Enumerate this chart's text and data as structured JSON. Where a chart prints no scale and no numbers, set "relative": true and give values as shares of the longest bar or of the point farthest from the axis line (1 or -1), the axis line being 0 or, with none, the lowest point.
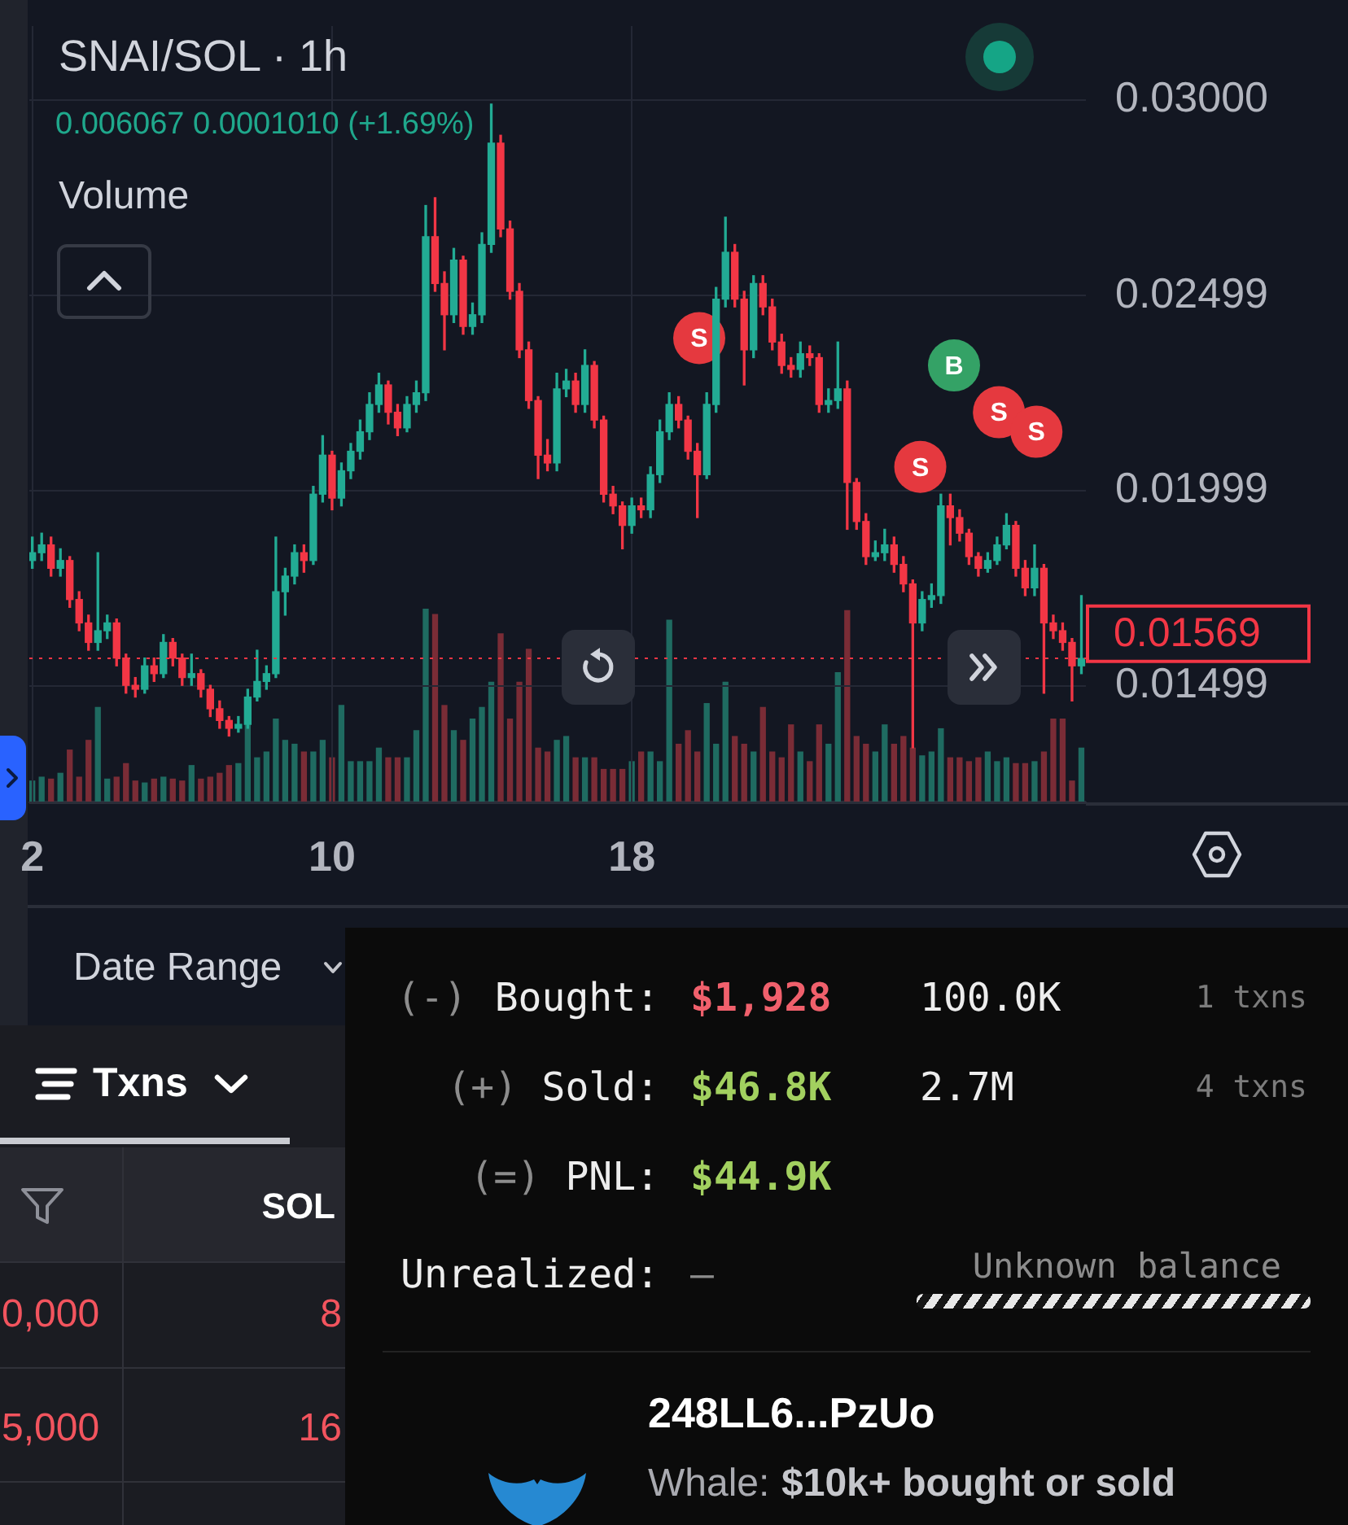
{
  "chart_data": [
    {
      "type": "candlestick",
      "title": "SNAI/SOL · 1h",
      "subtitle": "0.006067 0.0001010 (+1.69%)",
      "x": [
        2,
        2.25,
        2.5,
        2.75,
        3,
        3.25,
        3.5,
        3.75,
        4,
        4.25,
        4.5,
        4.75,
        5,
        5.25,
        5.5,
        5.75,
        6,
        6.25,
        6.5,
        6.75,
        7,
        7.25,
        7.5,
        7.75,
        8,
        8.25,
        8.5,
        8.75,
        9,
        9.25,
        9.5,
        9.75,
        10,
        10.25,
        10.5,
        10.75,
        11,
        11.25,
        11.5,
        11.75,
        12,
        12.25,
        12.5,
        12.75,
        13,
        13.25,
        13.5,
        13.75,
        14,
        14.25,
        14.5,
        14.75,
        15,
        15.25,
        15.5,
        15.75,
        16,
        16.25,
        16.5,
        16.75,
        17,
        17.25,
        17.5,
        17.75,
        18,
        18.25,
        18.5,
        18.75,
        19,
        19.25,
        19.5,
        19.75,
        20,
        20.25,
        20.5,
        20.75,
        21,
        21.25,
        21.5,
        21.75,
        22,
        22.25,
        22.5,
        22.75,
        23,
        23.25,
        23.5,
        23.75,
        24,
        24.25,
        24.5,
        24.75,
        25,
        25.25,
        25.5,
        25.75,
        26,
        26.25,
        26.5,
        26.75,
        27,
        27.25,
        27.5,
        27.75,
        28,
        28.25,
        28.5,
        28.75,
        29,
        29.25,
        29.5,
        29.75,
        30
      ],
      "ohlc": [
        [
          0.0182,
          0.0188,
          0.018,
          0.0184
        ],
        [
          0.0184,
          0.0189,
          0.0182,
          0.0186
        ],
        [
          0.0186,
          0.0188,
          0.0178,
          0.018
        ],
        [
          0.018,
          0.0185,
          0.0178,
          0.0182
        ],
        [
          0.0182,
          0.0183,
          0.017,
          0.0172
        ],
        [
          0.0172,
          0.0174,
          0.0164,
          0.0166
        ],
        [
          0.0166,
          0.0168,
          0.0159,
          0.0161
        ],
        [
          0.0161,
          0.0184,
          0.0159,
          0.0164
        ],
        [
          0.0164,
          0.0168,
          0.0162,
          0.0166
        ],
        [
          0.0166,
          0.0167,
          0.0155,
          0.0157
        ],
        [
          0.0157,
          0.0158,
          0.0148,
          0.015
        ],
        [
          0.015,
          0.0152,
          0.0147,
          0.0149
        ],
        [
          0.0149,
          0.0157,
          0.0148,
          0.0155
        ],
        [
          0.0155,
          0.0157,
          0.0151,
          0.0153
        ],
        [
          0.0153,
          0.0163,
          0.0152,
          0.0161
        ],
        [
          0.0161,
          0.0162,
          0.0155,
          0.0157
        ],
        [
          0.0157,
          0.0158,
          0.015,
          0.0152
        ],
        [
          0.0152,
          0.0158,
          0.015,
          0.0153
        ],
        [
          0.0153,
          0.0154,
          0.0147,
          0.0149
        ],
        [
          0.0149,
          0.015,
          0.0142,
          0.0144
        ],
        [
          0.0144,
          0.0146,
          0.0139,
          0.0141
        ],
        [
          0.0141,
          0.0142,
          0.0137,
          0.0139
        ],
        [
          0.0139,
          0.0142,
          0.0138,
          0.014
        ],
        [
          0.014,
          0.0149,
          0.0139,
          0.0147
        ],
        [
          0.0147,
          0.0159,
          0.0146,
          0.0151
        ],
        [
          0.0151,
          0.0155,
          0.0149,
          0.0153
        ],
        [
          0.0153,
          0.0188,
          0.0152,
          0.0174
        ],
        [
          0.0174,
          0.018,
          0.0168,
          0.0178
        ],
        [
          0.0178,
          0.0186,
          0.0176,
          0.0184
        ],
        [
          0.0184,
          0.0186,
          0.0179,
          0.0182
        ],
        [
          0.0182,
          0.0201,
          0.0181,
          0.0199
        ],
        [
          0.0199,
          0.0214,
          0.0197,
          0.0209
        ],
        [
          0.0209,
          0.021,
          0.0195,
          0.0198
        ],
        [
          0.0198,
          0.0207,
          0.0196,
          0.0205
        ],
        [
          0.0205,
          0.0212,
          0.0203,
          0.021
        ],
        [
          0.021,
          0.0218,
          0.0208,
          0.0215
        ],
        [
          0.0215,
          0.0225,
          0.0213,
          0.0222
        ],
        [
          0.0222,
          0.023,
          0.022,
          0.0227
        ],
        [
          0.0227,
          0.0228,
          0.0217,
          0.022
        ],
        [
          0.022,
          0.0222,
          0.0214,
          0.0216
        ],
        [
          0.0216,
          0.0224,
          0.0215,
          0.0222
        ],
        [
          0.0222,
          0.0228,
          0.022,
          0.0225
        ],
        [
          0.0225,
          0.0273,
          0.0223,
          0.0265
        ],
        [
          0.0265,
          0.0275,
          0.0251,
          0.0253
        ],
        [
          0.0253,
          0.0256,
          0.0236,
          0.0245
        ],
        [
          0.0245,
          0.0262,
          0.0243,
          0.0259
        ],
        [
          0.0259,
          0.026,
          0.024,
          0.0242
        ],
        [
          0.0242,
          0.0248,
          0.024,
          0.0245
        ],
        [
          0.0245,
          0.0266,
          0.0243,
          0.0263
        ],
        [
          0.0263,
          0.0299,
          0.0261,
          0.0289
        ],
        [
          0.0289,
          0.0291,
          0.0265,
          0.0267
        ],
        [
          0.0267,
          0.0269,
          0.0249,
          0.0251
        ],
        [
          0.0251,
          0.0253,
          0.0234,
          0.0236
        ],
        [
          0.0236,
          0.0238,
          0.0221,
          0.0223
        ],
        [
          0.0223,
          0.0224,
          0.0203,
          0.0209
        ],
        [
          0.0209,
          0.0213,
          0.0205,
          0.0207
        ],
        [
          0.0207,
          0.023,
          0.0205,
          0.0226
        ],
        [
          0.0226,
          0.0231,
          0.0224,
          0.0228
        ],
        [
          0.0228,
          0.023,
          0.022,
          0.0222
        ],
        [
          0.0222,
          0.0236,
          0.022,
          0.0232
        ],
        [
          0.0232,
          0.0233,
          0.0216,
          0.0218
        ],
        [
          0.0218,
          0.0219,
          0.0197,
          0.0199
        ],
        [
          0.0199,
          0.0201,
          0.0194,
          0.0196
        ],
        [
          0.0196,
          0.0197,
          0.0185,
          0.0191
        ],
        [
          0.0191,
          0.0198,
          0.0189,
          0.0196
        ],
        [
          0.0196,
          0.0198,
          0.0193,
          0.0195
        ],
        [
          0.0195,
          0.0206,
          0.0193,
          0.0204
        ],
        [
          0.0204,
          0.0218,
          0.0202,
          0.0215
        ],
        [
          0.0215,
          0.0225,
          0.0213,
          0.0222
        ],
        [
          0.0222,
          0.0224,
          0.0216,
          0.0218
        ],
        [
          0.0218,
          0.0219,
          0.0208,
          0.021
        ],
        [
          0.021,
          0.0212,
          0.0193,
          0.0204
        ],
        [
          0.0204,
          0.0225,
          0.0203,
          0.0222
        ],
        [
          0.0222,
          0.0252,
          0.022,
          0.0249
        ],
        [
          0.0249,
          0.027,
          0.0247,
          0.0261
        ],
        [
          0.0261,
          0.0263,
          0.0247,
          0.0249
        ],
        [
          0.0249,
          0.0251,
          0.0227,
          0.0236
        ],
        [
          0.0236,
          0.0255,
          0.0234,
          0.0253
        ],
        [
          0.0253,
          0.0255,
          0.0245,
          0.0247
        ],
        [
          0.0247,
          0.0249,
          0.0236,
          0.0238
        ],
        [
          0.0238,
          0.024,
          0.023,
          0.0232
        ],
        [
          0.0232,
          0.0234,
          0.0229,
          0.0231
        ],
        [
          0.0231,
          0.0238,
          0.0229,
          0.0235
        ],
        [
          0.0235,
          0.0237,
          0.0232,
          0.0234
        ],
        [
          0.0234,
          0.0235,
          0.022,
          0.0222
        ],
        [
          0.0222,
          0.0226,
          0.022,
          0.0223
        ],
        [
          0.0223,
          0.0238,
          0.0221,
          0.0226
        ],
        [
          0.0226,
          0.0228,
          0.019,
          0.0202
        ],
        [
          0.0202,
          0.0203,
          0.019,
          0.0192
        ],
        [
          0.0192,
          0.0194,
          0.0181,
          0.0183
        ],
        [
          0.0183,
          0.0187,
          0.0182,
          0.0184
        ],
        [
          0.0184,
          0.019,
          0.0182,
          0.0186
        ],
        [
          0.0186,
          0.0188,
          0.0179,
          0.0181
        ],
        [
          0.0181,
          0.0183,
          0.0174,
          0.0176
        ],
        [
          0.0176,
          0.0177,
          0.0134,
          0.0166
        ],
        [
          0.0166,
          0.0174,
          0.0164,
          0.0172
        ],
        [
          0.0172,
          0.0176,
          0.017,
          0.0173
        ],
        [
          0.0173,
          0.0199,
          0.0171,
          0.0196
        ],
        [
          0.0196,
          0.0199,
          0.0186,
          0.0193
        ],
        [
          0.0193,
          0.0195,
          0.0187,
          0.0189
        ],
        [
          0.0189,
          0.019,
          0.0181,
          0.0183
        ],
        [
          0.0183,
          0.0184,
          0.0178,
          0.018
        ],
        [
          0.018,
          0.0184,
          0.0179,
          0.0182
        ],
        [
          0.0182,
          0.0188,
          0.0181,
          0.0186
        ],
        [
          0.0186,
          0.0194,
          0.0185,
          0.0191
        ],
        [
          0.0191,
          0.0192,
          0.0178,
          0.018
        ],
        [
          0.018,
          0.0182,
          0.0173,
          0.0175
        ],
        [
          0.0175,
          0.0186,
          0.0173,
          0.018
        ],
        [
          0.018,
          0.0181,
          0.0148,
          0.0166
        ],
        [
          0.0166,
          0.0168,
          0.0162,
          0.0164
        ],
        [
          0.0164,
          0.0166,
          0.0159,
          0.0161
        ],
        [
          0.0161,
          0.0162,
          0.0146,
          0.0155
        ],
        [
          0.0155,
          0.0173,
          0.0153,
          0.01569
        ]
      ],
      "series": [
        {
          "type": "scatter",
          "color": "#e5393f",
          "marker": "circle",
          "x": [
            19.8,
            25.7,
            27.8,
            28.8
          ],
          "values": [
            0.0239,
            0.0206,
            0.022,
            0.0215
          ],
          "value_labels": [
            "S",
            "S",
            "S",
            "S"
          ]
        },
        {
          "type": "scatter",
          "color": "#34a266",
          "marker": "circle",
          "x": [
            26.6
          ],
          "values": [
            0.0232
          ],
          "value_labels": [
            "B"
          ]
        }
      ],
      "xlim": [
        1.92,
        30.12
      ],
      "xticks": [
        2,
        10,
        18
      ],
      "ylim": [
        0.012,
        0.0319
      ],
      "yticks": [
        {
          "value": 0.03,
          "label": "0.03000"
        },
        0.02499,
        0.01999,
        0.01499
      ],
      "grid": true,
      "ref_lines": [
        {
          "axis": "y",
          "value": 0.01569,
          "label": "0.01569",
          "color": "#f23645",
          "line_style": "dotted"
        }
      ]
    },
    {
      "type": "bar",
      "title": "Volume",
      "relative": true,
      "tick_labels": false,
      "xlim": [
        1.92,
        30.12
      ],
      "x": [
        2,
        2.25,
        2.5,
        2.75,
        3,
        3.25,
        3.5,
        3.75,
        4,
        4.25,
        4.5,
        4.75,
        5,
        5.25,
        5.5,
        5.75,
        6,
        6.25,
        6.5,
        6.75,
        7,
        7.25,
        7.5,
        7.75,
        8,
        8.25,
        8.5,
        8.75,
        9,
        9.25,
        9.5,
        9.75,
        10,
        10.25,
        10.5,
        10.75,
        11,
        11.25,
        11.5,
        11.75,
        12,
        12.25,
        12.5,
        12.75,
        13,
        13.25,
        13.5,
        13.75,
        14,
        14.25,
        14.5,
        14.75,
        15,
        15.25,
        15.5,
        15.75,
        16,
        16.25,
        16.5,
        16.75,
        17,
        17.25,
        17.5,
        17.75,
        18,
        18.25,
        18.5,
        18.75,
        19,
        19.25,
        19.5,
        19.75,
        20,
        20.25,
        20.5,
        20.75,
        21,
        21.25,
        21.5,
        21.75,
        22,
        22.25,
        22.5,
        22.75,
        23,
        23.25,
        23.5,
        23.75,
        24,
        24.25,
        24.5,
        24.75,
        25,
        25.25,
        25.5,
        25.75,
        26,
        26.25,
        26.5,
        26.75,
        27,
        27.25,
        27.5,
        27.75,
        28,
        28.25,
        28.5,
        28.75,
        29,
        29.25,
        29.5,
        29.75,
        30
      ],
      "values": [
        0.11,
        0.13,
        0.12,
        0.15,
        0.27,
        0.13,
        0.32,
        0.49,
        0.12,
        0.13,
        0.2,
        0.11,
        0.1,
        0.12,
        0.13,
        0.12,
        0.11,
        0.19,
        0.12,
        0.13,
        0.15,
        0.19,
        0.2,
        0.4,
        0.23,
        0.26,
        0.43,
        0.32,
        0.3,
        0.26,
        0.26,
        0.32,
        0.23,
        0.5,
        0.21,
        0.21,
        0.21,
        0.28,
        0.23,
        0.23,
        0.23,
        0.37,
        1,
        0.97,
        0.5,
        0.37,
        0.32,
        0.43,
        0.49,
        0.62,
        0.87,
        0.43,
        0.62,
        0.79,
        0.28,
        0.26,
        0.32,
        0.34,
        0.23,
        0.23,
        0.23,
        0.17,
        0.17,
        0.17,
        0.21,
        0.26,
        0.26,
        0.21,
        0.94,
        0.3,
        0.37,
        0.26,
        0.51,
        0.3,
        0.62,
        0.34,
        0.3,
        0.26,
        0.49,
        0.26,
        0.23,
        0.4,
        0.26,
        0.21,
        0.4,
        0.3,
        0.67,
        0.99,
        0.34,
        0.3,
        0.26,
        0.4,
        0.3,
        0.34,
        0.28,
        0.24,
        0.26,
        0.38,
        0.23,
        0.23,
        0.21,
        0.23,
        0.26,
        0.21,
        0.23,
        0.2,
        0.2,
        0.21,
        0.26,
        0.43,
        0.43,
        0.11,
        0.28
      ],
      "colors": [
        "#1f6b61",
        "#1f6b61",
        "#7a2c36",
        "#1f6b61",
        "#7a2c36",
        "#7a2c36",
        "#7a2c36",
        "#1f6b61",
        "#1f6b61",
        "#7a2c36",
        "#7a2c36",
        "#7a2c36",
        "#1f6b61",
        "#7a2c36",
        "#1f6b61",
        "#7a2c36",
        "#7a2c36",
        "#1f6b61",
        "#7a2c36",
        "#7a2c36",
        "#7a2c36",
        "#7a2c36",
        "#1f6b61",
        "#1f6b61",
        "#1f6b61",
        "#1f6b61",
        "#1f6b61",
        "#1f6b61",
        "#1f6b61",
        "#7a2c36",
        "#1f6b61",
        "#1f6b61",
        "#7a2c36",
        "#1f6b61",
        "#1f6b61",
        "#1f6b61",
        "#1f6b61",
        "#1f6b61",
        "#7a2c36",
        "#7a2c36",
        "#1f6b61",
        "#1f6b61",
        "#1f6b61",
        "#7a2c36",
        "#7a2c36",
        "#1f6b61",
        "#7a2c36",
        "#1f6b61",
        "#1f6b61",
        "#1f6b61",
        "#7a2c36",
        "#7a2c36",
        "#7a2c36",
        "#7a2c36",
        "#7a2c36",
        "#7a2c36",
        "#1f6b61",
        "#1f6b61",
        "#7a2c36",
        "#1f6b61",
        "#7a2c36",
        "#7a2c36",
        "#7a2c36",
        "#7a2c36",
        "#1f6b61",
        "#7a2c36",
        "#1f6b61",
        "#1f6b61",
        "#1f6b61",
        "#7a2c36",
        "#7a2c36",
        "#7a2c36",
        "#1f6b61",
        "#1f6b61",
        "#1f6b61",
        "#7a2c36",
        "#7a2c36",
        "#1f6b61",
        "#7a2c36",
        "#7a2c36",
        "#7a2c36",
        "#7a2c36",
        "#1f6b61",
        "#7a2c36",
        "#7a2c36",
        "#1f6b61",
        "#1f6b61",
        "#7a2c36",
        "#7a2c36",
        "#7a2c36",
        "#1f6b61",
        "#1f6b61",
        "#7a2c36",
        "#7a2c36",
        "#7a2c36",
        "#1f6b61",
        "#1f6b61",
        "#1f6b61",
        "#7a2c36",
        "#7a2c36",
        "#7a2c36",
        "#7a2c36",
        "#1f6b61",
        "#1f6b61",
        "#1f6b61",
        "#7a2c36",
        "#7a2c36",
        "#1f6b61",
        "#7a2c36",
        "#7a2c36",
        "#7a2c36",
        "#7a2c36",
        "#1f6b61"
      ]
    },
    {
      "type": "other",
      "annotations": [
        "Date Range",
        "Txns",
        "SOL",
        "0,000",
        "8",
        "5,000",
        "16"
      ]
    },
    {
      "type": "other",
      "annotations": [
        "(-)",
        "Bought:",
        "$1,928",
        "100.0K",
        "1 txns",
        "(+)",
        "Sold:",
        "$46.8K",
        "2.7M",
        "4 txns",
        "(=)",
        "PNL:",
        "$44.9K",
        "Unrealized:",
        "–",
        "Unknown balance",
        "248LL6...PzUo",
        "Whale:",
        "$10k+ bought or sold"
      ]
    }
  ]
}
